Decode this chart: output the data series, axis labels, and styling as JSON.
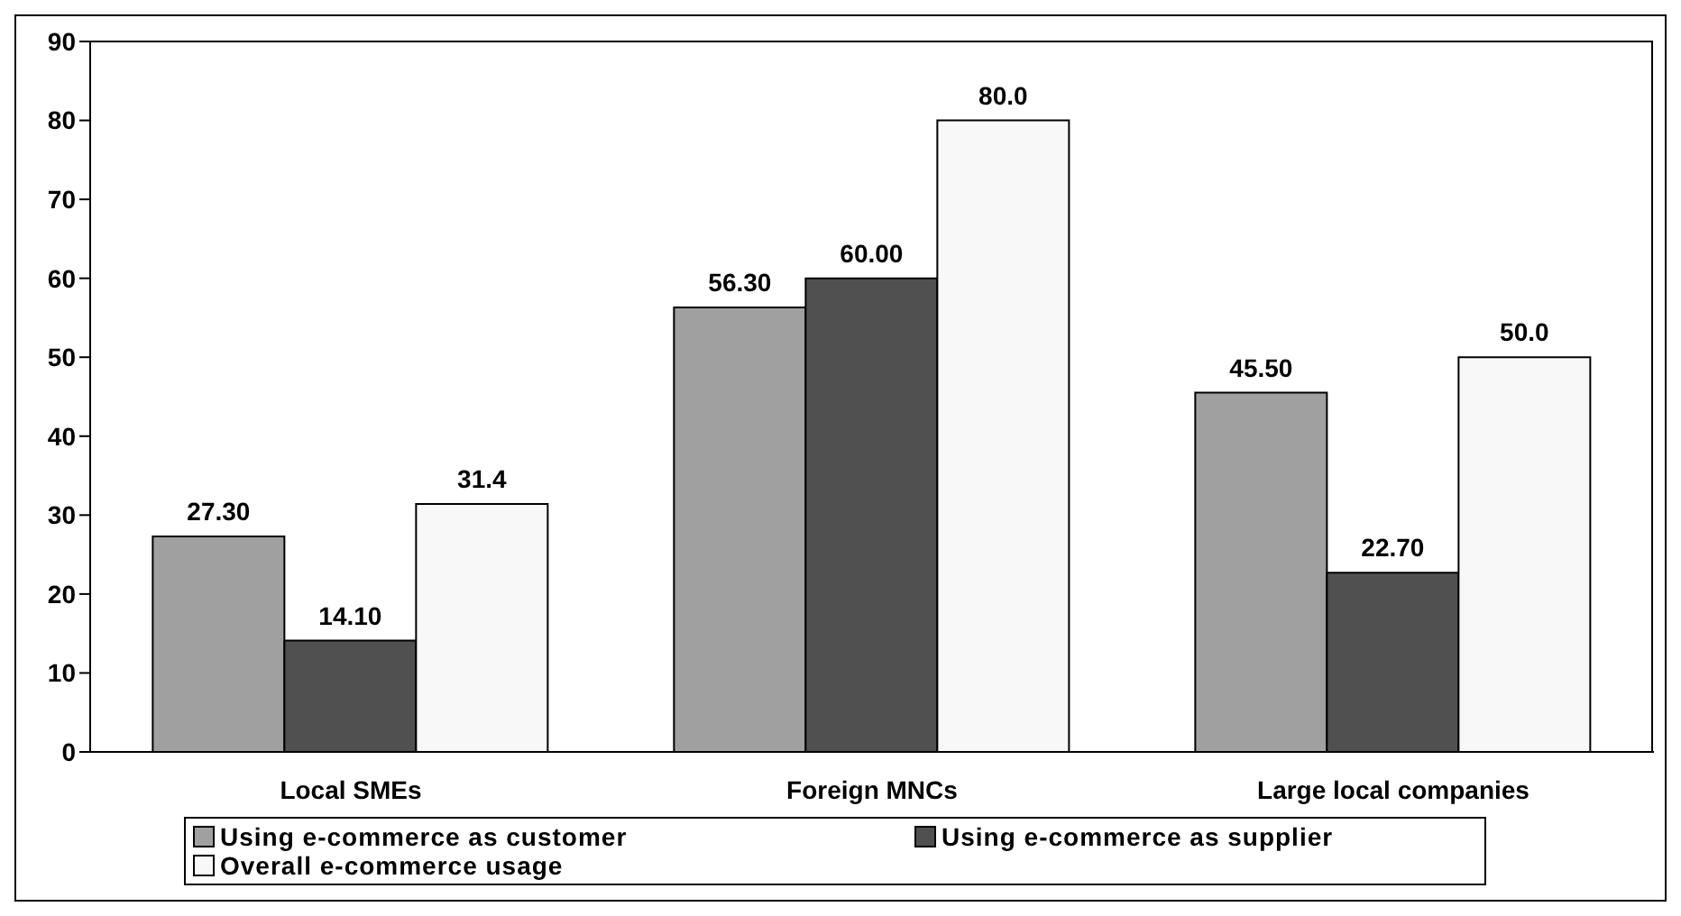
{
  "chart_data": {
    "type": "bar",
    "categories": [
      "Local SMEs",
      "Foreign MNCs",
      "Large local companies"
    ],
    "series": [
      {
        "name": "Using e-commerce as customer",
        "color": "#a0a0a0",
        "values": [
          27.3,
          56.3,
          45.5
        ],
        "value_labels": [
          "27.30",
          "56.30",
          "45.50"
        ]
      },
      {
        "name": "Using e-commerce as supplier",
        "color": "#505050",
        "values": [
          14.1,
          60.0,
          22.7
        ],
        "value_labels": [
          "14.10",
          "60.00",
          "22.70"
        ]
      },
      {
        "name": "Overall e-commerce usage",
        "color": "#f8f8f8",
        "values": [
          31.4,
          80.0,
          50.0
        ],
        "value_labels": [
          "31.4",
          "80.0",
          "50.0"
        ]
      }
    ],
    "ylim": [
      0,
      90
    ],
    "yticks": [
      0,
      10,
      20,
      30,
      40,
      50,
      60,
      70,
      80,
      90
    ],
    "grid": false,
    "legend": "bottom"
  }
}
